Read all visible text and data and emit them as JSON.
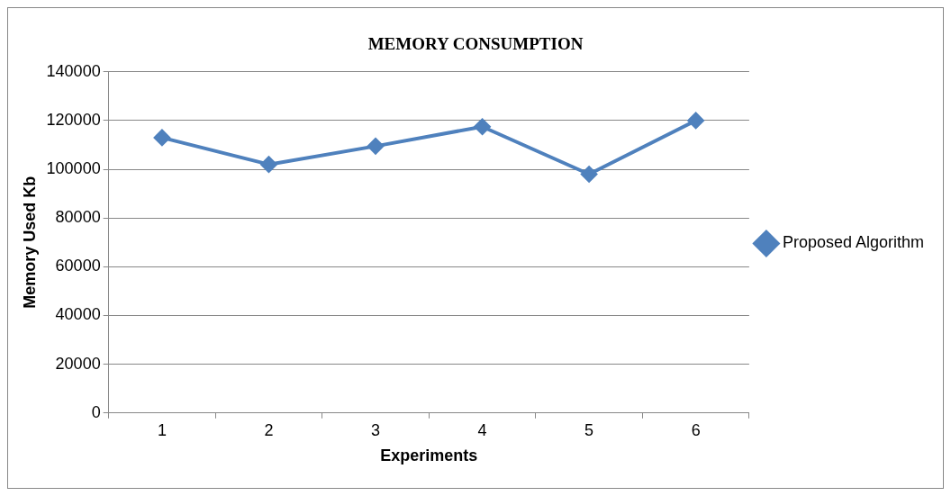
{
  "chart_data": {
    "type": "line",
    "title": "MEMORY CONSUMPTION",
    "xlabel": "Experiments",
    "ylabel": "Memory Used Kb",
    "categories": [
      "1",
      "2",
      "3",
      "4",
      "5",
      "6"
    ],
    "series": [
      {
        "name": "Proposed Algorithm",
        "color": "#4f81bd",
        "values": [
          113000,
          102000,
          109500,
          117500,
          98000,
          120000
        ]
      }
    ],
    "ylim": [
      0,
      140000
    ],
    "yticks": [
      0,
      20000,
      40000,
      60000,
      80000,
      100000,
      120000,
      140000
    ],
    "grid": "y",
    "legend": "right",
    "marker": "diamond",
    "line_style": "solid"
  }
}
